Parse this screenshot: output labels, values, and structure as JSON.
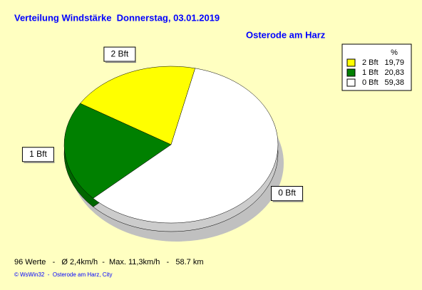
{
  "chart_data": {
    "type": "pie",
    "title": "Verteilung Windstärke  Donnerstag, 03.01.2019",
    "subtitle": "Osterode am Harz",
    "legend_title": "%",
    "categories": [
      "2 Bft",
      "1 Bft",
      "0 Bft"
    ],
    "values": [
      19.79,
      20.83,
      59.38
    ],
    "value_labels": [
      "19,79",
      "20,83",
      "59,38"
    ],
    "colors": [
      "#ffff00",
      "#008000",
      "#ffffff"
    ],
    "legend": "top-right",
    "annotations": [
      "96 Werte   -   Ø 2,4km/h  -  Max. 11,3km/h   -   58.7 km",
      "© WsWin32  -  Osterode am Harz, City"
    ]
  }
}
